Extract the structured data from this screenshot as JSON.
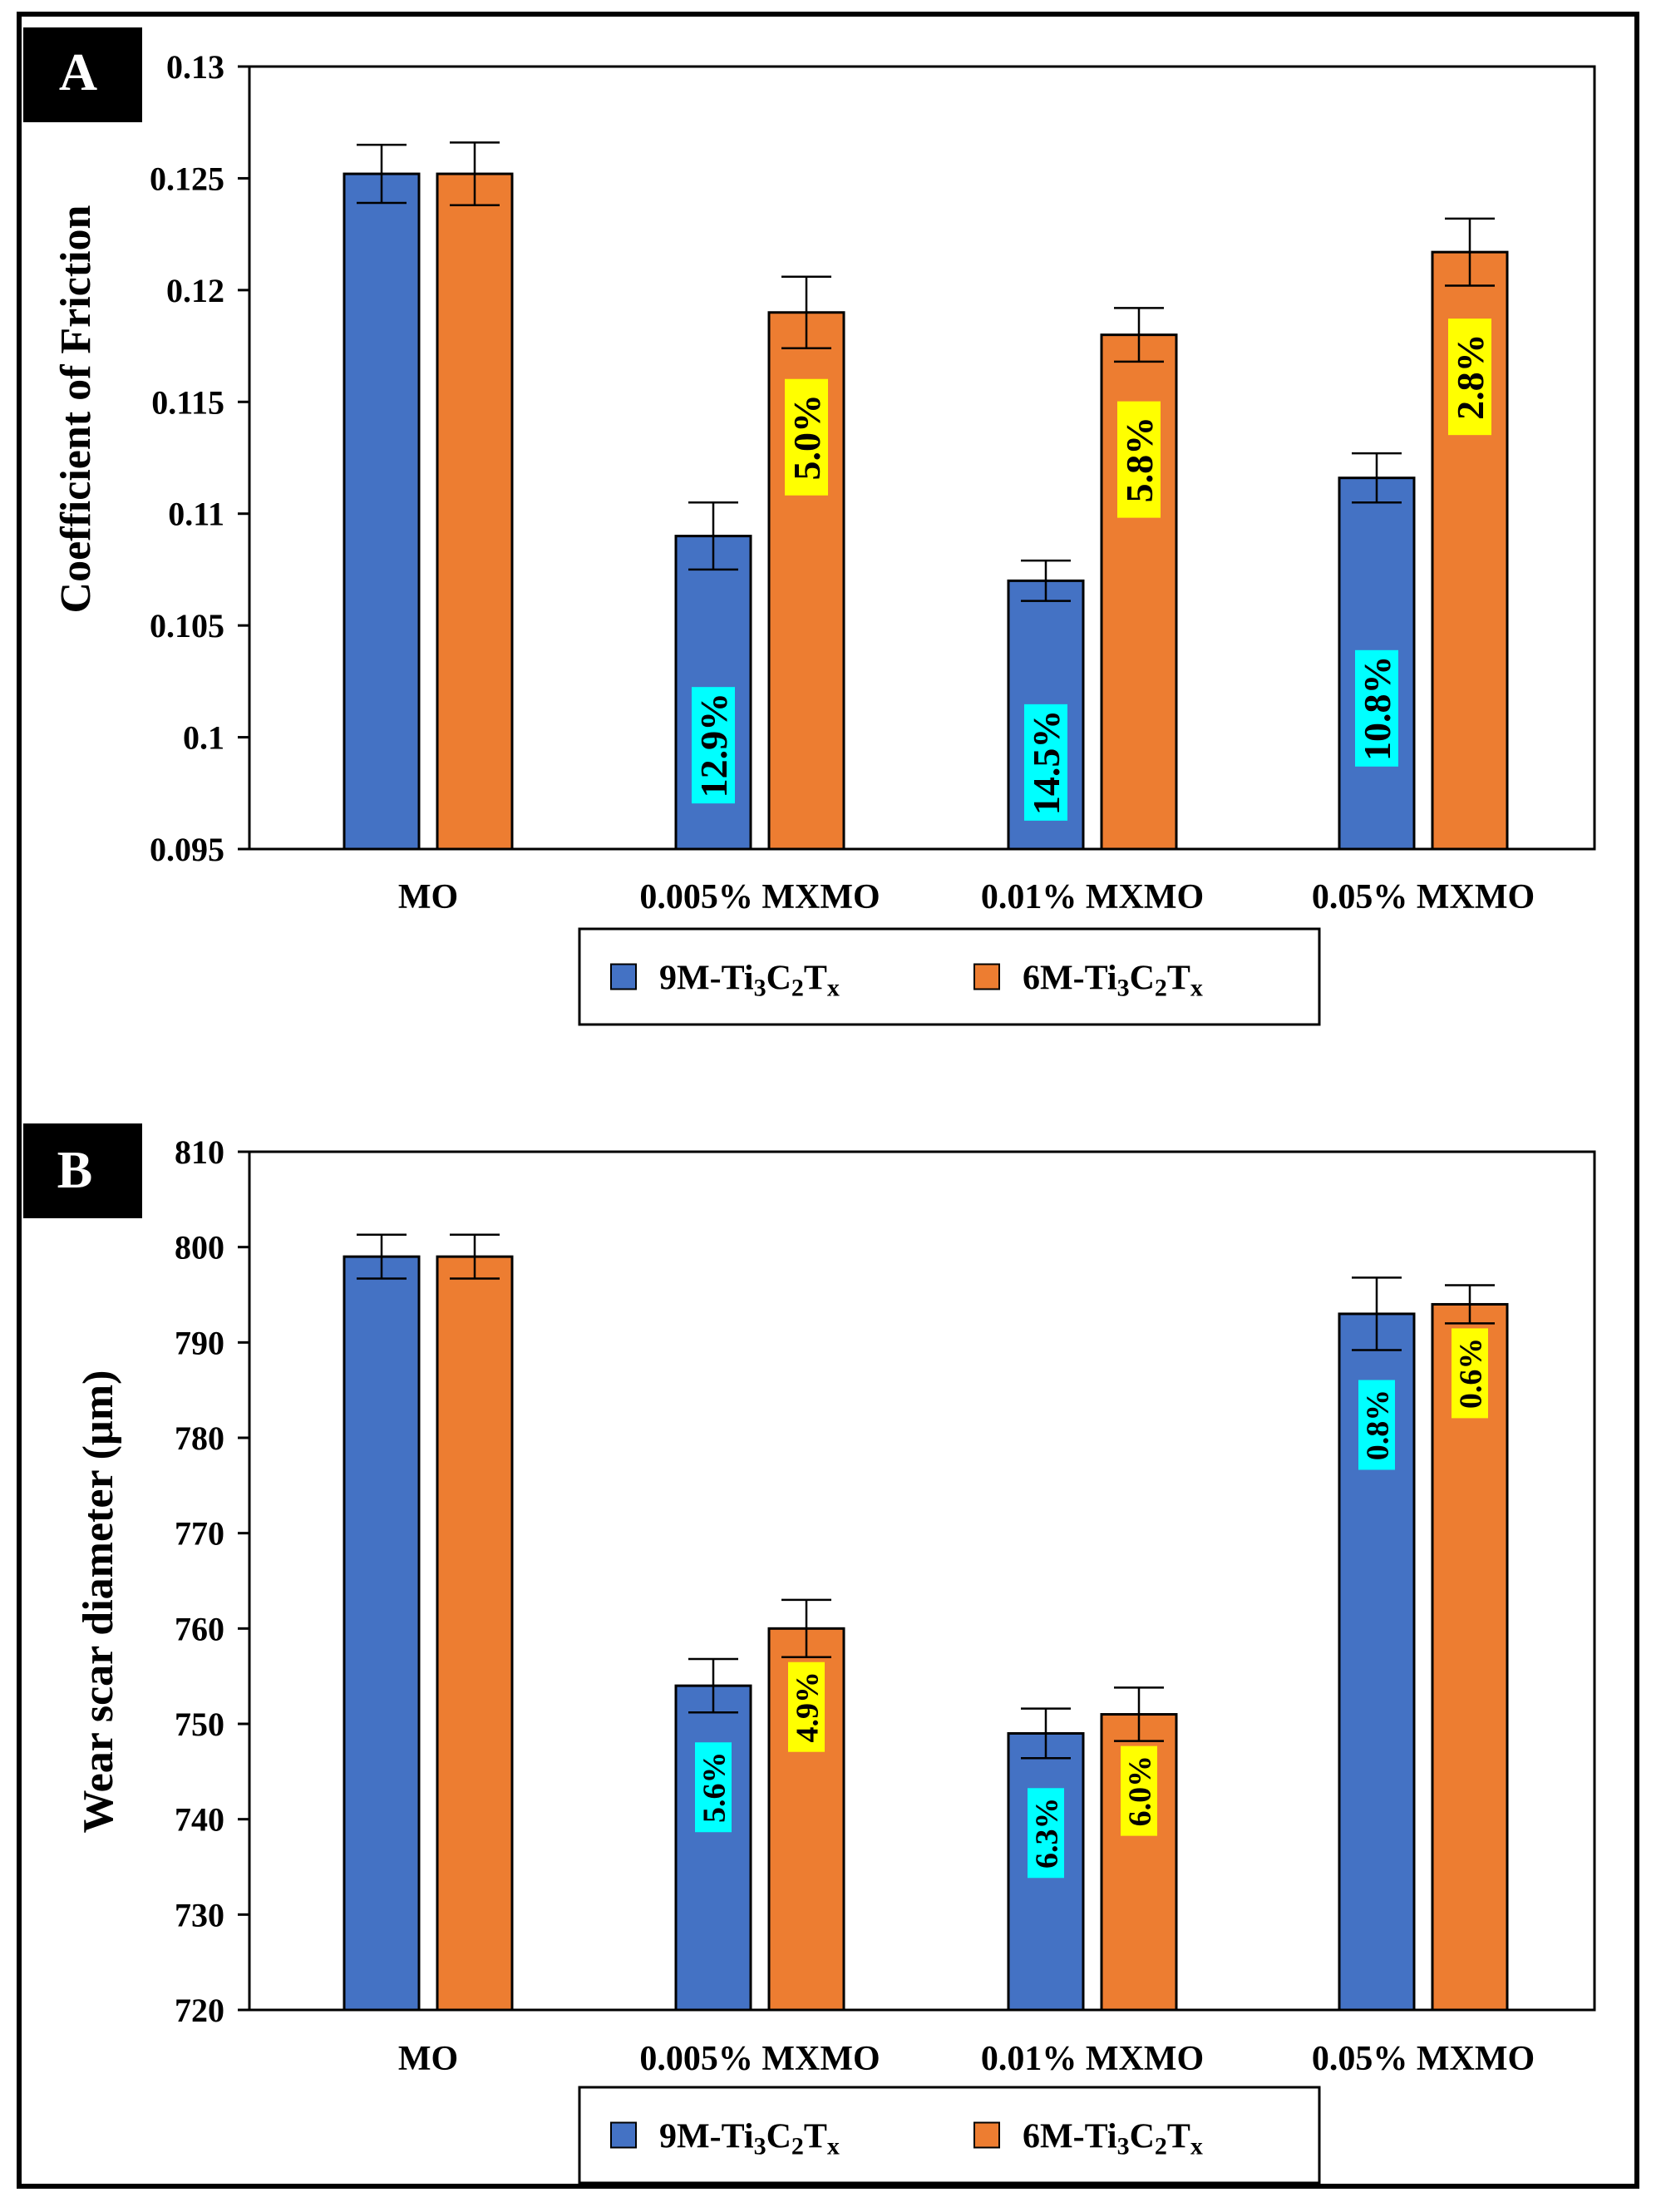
{
  "chart_data": [
    {
      "panel_label": "A",
      "type": "bar",
      "categories": [
        "MO",
        "0.005% MXMO",
        "0.01% MXMO",
        "0.05% MXMO"
      ],
      "ylabel": "Coefficient of Friction",
      "xlabel": "",
      "ylim": [
        0.095,
        0.13
      ],
      "yticks": [
        "0.095",
        "0.1",
        "0.105",
        "0.11",
        "0.115",
        "0.12",
        "0.125",
        "0.13"
      ],
      "yticks_values": [
        0.095,
        0.1,
        0.105,
        0.11,
        0.115,
        0.12,
        0.125,
        0.13
      ],
      "legend_position": "bottom",
      "series": [
        {
          "name": "9M-Ti3C2Tx",
          "legend_label": {
            "pre": "9M-Ti",
            "s1": "3",
            "mid": "C",
            "s2": "2",
            "post": "T",
            "s3": "x"
          },
          "color": "#4472C4",
          "values": [
            0.1252,
            0.109,
            0.107,
            0.1116
          ],
          "errors": [
            0.0013,
            0.0015,
            0.0009,
            0.0011
          ],
          "labels": [
            "",
            "12.9%",
            "14.5%",
            "10.8%"
          ],
          "label_bg": "#00FFFF"
        },
        {
          "name": "6M-Ti3C2Tx",
          "legend_label": {
            "pre": "6M-Ti",
            "s1": "3",
            "mid": "C",
            "s2": "2",
            "post": "T",
            "s3": "x"
          },
          "color": "#ED7D31",
          "values": [
            0.1252,
            0.119,
            0.118,
            0.1217
          ],
          "errors": [
            0.0014,
            0.0016,
            0.0012,
            0.0015
          ],
          "labels": [
            "",
            "5.0%",
            "5.8%",
            "2.8%"
          ],
          "label_bg": "#FFFF00"
        }
      ]
    },
    {
      "panel_label": "B",
      "type": "bar",
      "categories": [
        "MO",
        "0.005% MXMO",
        "0.01% MXMO",
        "0.05% MXMO"
      ],
      "ylabel": "Wear scar diameter (µm)",
      "xlabel": "",
      "ylim": [
        720,
        810
      ],
      "yticks": [
        "720",
        "730",
        "740",
        "750",
        "760",
        "770",
        "780",
        "790",
        "800",
        "810"
      ],
      "yticks_values": [
        720,
        730,
        740,
        750,
        760,
        770,
        780,
        790,
        800,
        810
      ],
      "legend_position": "bottom",
      "series": [
        {
          "name": "9M-Ti3C2Tx",
          "legend_label": {
            "pre": "9M-Ti",
            "s1": "3",
            "mid": "C",
            "s2": "2",
            "post": "T",
            "s3": "x"
          },
          "color": "#4472C4",
          "values": [
            799,
            754,
            749,
            793
          ],
          "errors": [
            2.3,
            2.8,
            2.6,
            3.8
          ],
          "labels": [
            "",
            "5.6%",
            "6.3%",
            "0.8%"
          ],
          "label_bg": "#00FFFF"
        },
        {
          "name": "6M-Ti3C2Tx",
          "legend_label": {
            "pre": "6M-Ti",
            "s1": "3",
            "mid": "C",
            "s2": "2",
            "post": "T",
            "s3": "x"
          },
          "color": "#ED7D31",
          "values": [
            799,
            760,
            751,
            794
          ],
          "errors": [
            2.3,
            3.0,
            2.8,
            2.0
          ],
          "labels": [
            "",
            "4.9%",
            "6.0%",
            "0.6%"
          ],
          "label_bg": "#FFFF00"
        }
      ]
    }
  ]
}
